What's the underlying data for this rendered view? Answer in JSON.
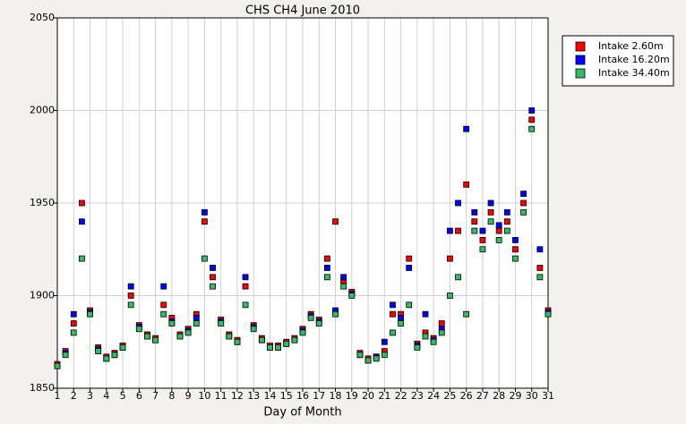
{
  "chart_data": {
    "type": "scatter",
    "title": "CHS CH4 June 2010",
    "x_label": "Day of Month",
    "x": [
      1,
      1.5,
      2,
      2.5,
      3,
      3.5,
      4,
      4.5,
      5,
      5.5,
      6,
      6.5,
      7,
      7.5,
      8,
      8.5,
      9,
      9.5,
      10,
      10.5,
      11,
      11.5,
      12,
      12.5,
      13,
      13.5,
      14,
      14.5,
      15,
      15.5,
      16,
      16.5,
      17,
      17.5,
      18,
      18.5,
      19,
      19.5,
      20,
      20.5,
      21,
      21.5,
      22,
      22.5,
      23,
      23.5,
      24,
      24.5,
      25,
      25.5,
      26,
      26.5,
      27,
      27.5,
      28,
      28.5,
      29,
      29.5,
      30,
      30.5,
      31
    ],
    "series": [
      {
        "name": "Intake 2.60m",
        "color": "#ff0000",
        "values": [
          1863,
          1870,
          1885,
          1950,
          1892,
          1872,
          1867,
          1869,
          1873,
          1900,
          1884,
          1879,
          1877,
          1895,
          1888,
          1879,
          1882,
          1890,
          1940,
          1910,
          1887,
          1879,
          1876,
          1905,
          1884,
          1877,
          1873,
          1873,
          1875,
          1877,
          1882,
          1890,
          1887,
          1920,
          1940,
          1908,
          1902,
          1869,
          1866,
          1867,
          1870,
          1890,
          1890,
          1920,
          1874,
          1880,
          1877,
          1885,
          1920,
          1935,
          1960,
          1940,
          1930,
          1945,
          1935,
          1940,
          1925,
          1950,
          1995,
          1915,
          1892
        ]
      },
      {
        "name": "Intake 16.20m",
        "color": "#0000ff",
        "values": [
          1862,
          1869,
          1890,
          1940,
          1891,
          1871,
          1866,
          1868,
          1872,
          1905,
          1883,
          1878,
          1876,
          1905,
          1886,
          1878,
          1881,
          1888,
          1945,
          1915,
          1886,
          1878,
          1875,
          1910,
          1883,
          1876,
          1872,
          1872,
          1874,
          1876,
          1881,
          1889,
          1886,
          1915,
          1892,
          1910,
          1901,
          1868,
          1865,
          1867,
          1875,
          1895,
          1888,
          1915,
          1873,
          1890,
          1876,
          1882,
          1935,
          1950,
          1990,
          1945,
          1935,
          1950,
          1938,
          1945,
          1930,
          1955,
          2000,
          1925,
          1891
        ]
      },
      {
        "name": "Intake 34.40m",
        "color": "#33bb66",
        "values": [
          1862,
          1868,
          1880,
          1920,
          1890,
          1870,
          1866,
          1868,
          1872,
          1895,
          1882,
          1878,
          1876,
          1890,
          1885,
          1878,
          1880,
          1885,
          1920,
          1905,
          1885,
          1878,
          1875,
          1895,
          1882,
          1876,
          1872,
          1872,
          1874,
          1876,
          1880,
          1888,
          1885,
          1910,
          1890,
          1905,
          1900,
          1868,
          1865,
          1866,
          1868,
          1880,
          1885,
          1895,
          1872,
          1878,
          1875,
          1880,
          1900,
          1910,
          1890,
          1935,
          1925,
          1940,
          1930,
          1935,
          1920,
          1945,
          1990,
          1910,
          1890
        ]
      }
    ],
    "xlim": [
      1,
      31
    ],
    "xticks": [
      1,
      2,
      3,
      4,
      5,
      6,
      7,
      8,
      9,
      10,
      11,
      12,
      13,
      14,
      15,
      16,
      17,
      18,
      19,
      20,
      21,
      22,
      23,
      24,
      25,
      26,
      27,
      28,
      29,
      30,
      31
    ],
    "ylim": [
      1850,
      2050
    ],
    "yticks": [
      1850,
      1900,
      1950,
      2000,
      2050
    ],
    "grid": true,
    "legend": "right"
  }
}
